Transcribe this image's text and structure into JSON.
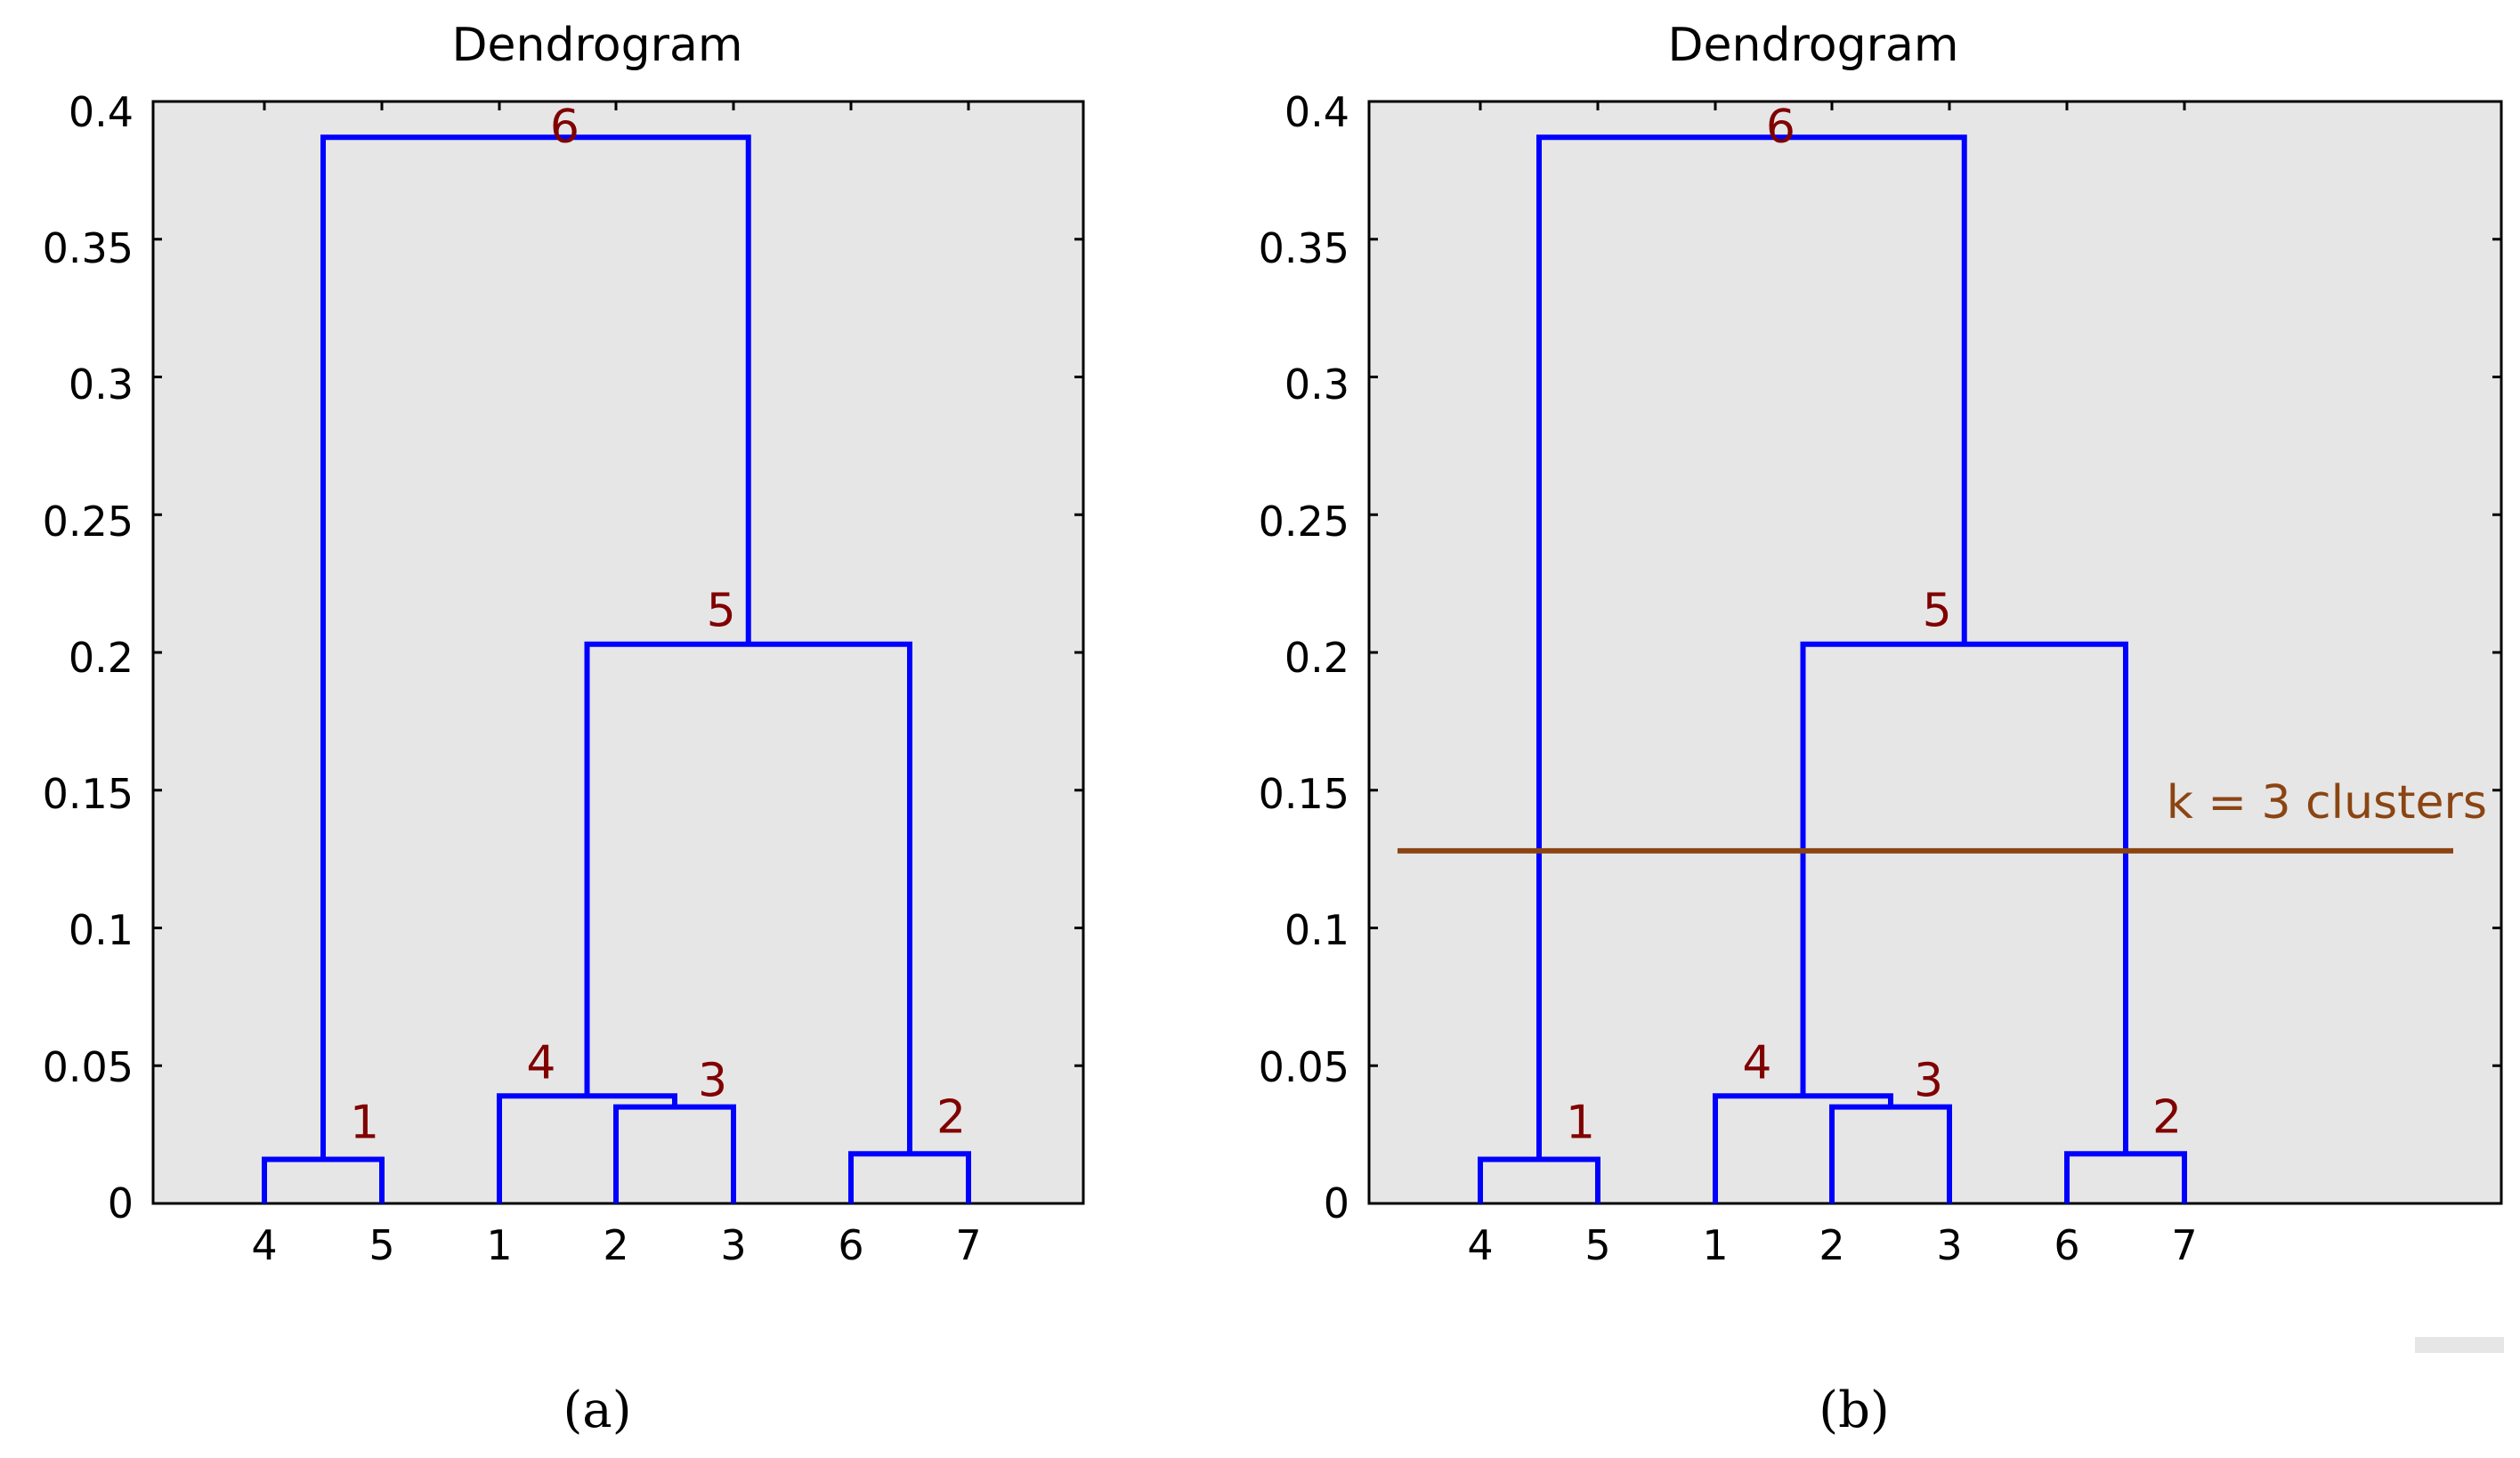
{
  "chart_data": [
    {
      "type": "dendrogram",
      "title": "Dendrogram",
      "caption": "(a)",
      "ylim": [
        0,
        0.4
      ],
      "yticks": [
        0,
        0.05,
        0.1,
        0.15,
        0.2,
        0.25,
        0.3,
        0.35,
        0.4
      ],
      "ytick_labels": [
        "0",
        "0.05",
        "0.1",
        "0.15",
        "0.2",
        "0.25",
        "0.3",
        "0.35",
        "0.4"
      ],
      "leaf_order": [
        "4",
        "5",
        "1",
        "2",
        "3",
        "6",
        "7"
      ],
      "merges": [
        {
          "label": "1",
          "height": 0.016,
          "left": "leaf:4",
          "right": "leaf:5"
        },
        {
          "label": "2",
          "height": 0.018,
          "left": "leaf:6",
          "right": "leaf:7"
        },
        {
          "label": "3",
          "height": 0.035,
          "left": "leaf:2",
          "right": "leaf:3"
        },
        {
          "label": "4",
          "height": 0.039,
          "left": "leaf:1",
          "right": "node:3"
        },
        {
          "label": "5",
          "height": 0.203,
          "left": "node:4",
          "right": "node:2"
        },
        {
          "label": "6",
          "height": 0.387,
          "left": "node:1",
          "right": "node:5"
        }
      ]
    },
    {
      "type": "dendrogram",
      "title": "Dendrogram",
      "caption": "(b)",
      "ylim": [
        0,
        0.4
      ],
      "yticks": [
        0,
        0.05,
        0.1,
        0.15,
        0.2,
        0.25,
        0.3,
        0.35,
        0.4
      ],
      "ytick_labels": [
        "0",
        "0.05",
        "0.1",
        "0.15",
        "0.2",
        "0.25",
        "0.3",
        "0.35",
        "0.4"
      ],
      "leaf_order": [
        "4",
        "5",
        "1",
        "2",
        "3",
        "6",
        "7"
      ],
      "merges": [
        {
          "label": "1",
          "height": 0.016,
          "left": "leaf:4",
          "right": "leaf:5"
        },
        {
          "label": "2",
          "height": 0.018,
          "left": "leaf:6",
          "right": "leaf:7"
        },
        {
          "label": "3",
          "height": 0.035,
          "left": "leaf:2",
          "right": "leaf:3"
        },
        {
          "label": "4",
          "height": 0.039,
          "left": "leaf:1",
          "right": "node:3"
        },
        {
          "label": "5",
          "height": 0.203,
          "left": "node:4",
          "right": "node:2"
        },
        {
          "label": "6",
          "height": 0.387,
          "left": "node:1",
          "right": "node:5"
        }
      ],
      "cut_line": {
        "y": 0.128,
        "label": "k = 3 clusters"
      }
    }
  ],
  "colors": {
    "plot_bg": "#e6e6e6",
    "branch": "#0000ff",
    "node_label": "#800000",
    "cut_line": "#8b4513",
    "axis": "#000000"
  }
}
